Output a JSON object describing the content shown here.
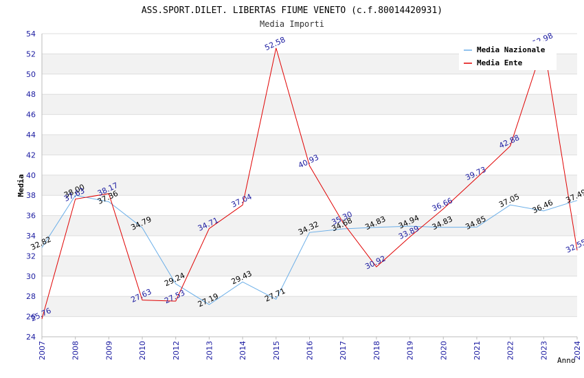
{
  "chart_data": {
    "type": "line",
    "title": "ASS.SPORT.DILET. LIBERTAS FIUME VENETO (c.f.80014420931)",
    "subtitle": "Media Importi",
    "xlabel": "Anno",
    "ylabel": "Media",
    "ylim": [
      24,
      54
    ],
    "yticks": [
      "24",
      "26",
      "28",
      "30",
      "32",
      "34",
      "36",
      "38",
      "40",
      "42",
      "44",
      "46",
      "48",
      "50",
      "52",
      "54"
    ],
    "categories": [
      "2007",
      "2008",
      "2009",
      "2010",
      "2012",
      "2013",
      "2014",
      "2015",
      "2016",
      "2017",
      "2018",
      "2019",
      "2020",
      "2021",
      "2022",
      "2023",
      "2024"
    ],
    "grid": true,
    "legend_position": "top-right",
    "series": [
      {
        "name": "Media Nazionale",
        "color": "#6aaee8",
        "label_color": "#000000",
        "values": [
          32.82,
          38.0,
          37.36,
          34.79,
          29.24,
          27.19,
          29.43,
          27.71,
          34.32,
          34.68,
          34.83,
          34.94,
          34.83,
          34.85,
          37.05,
          36.46,
          37.49
        ],
        "labels": [
          "32.82",
          "38.00",
          "37.36",
          "34.79",
          "29.24",
          "27.19",
          "29.43",
          "27.71",
          "34.32",
          "34.68",
          "34.83",
          "34.94",
          "34.83",
          "34.85",
          "37.05",
          "36.46",
          "37.49"
        ]
      },
      {
        "name": "Media Ente",
        "color": "#e00000",
        "label_color": "#1a1aa0",
        "values": [
          25.76,
          37.63,
          38.17,
          27.63,
          27.53,
          34.71,
          37.04,
          52.58,
          40.93,
          35.3,
          30.92,
          33.89,
          36.66,
          39.73,
          42.88,
          52.98,
          32.55
        ],
        "labels": [
          "25.76",
          "37.63",
          "38.17",
          "27.63",
          "27.53",
          "34.71",
          "37.04",
          "52.58",
          "40.93",
          "35.30",
          "30.92",
          "33.89",
          "36.66",
          "39.73",
          "42.88",
          "52.98",
          "32.55"
        ]
      }
    ]
  }
}
